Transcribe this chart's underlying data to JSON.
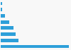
{
  "values": [
    3400,
    870,
    730,
    620,
    430,
    195,
    80,
    55
  ],
  "bar_color": "#2d9fd9",
  "background_color": "#f8f8f8",
  "grid_color": "#d8d8d8",
  "bar_height": 0.55,
  "figsize": [
    1.0,
    0.71
  ]
}
